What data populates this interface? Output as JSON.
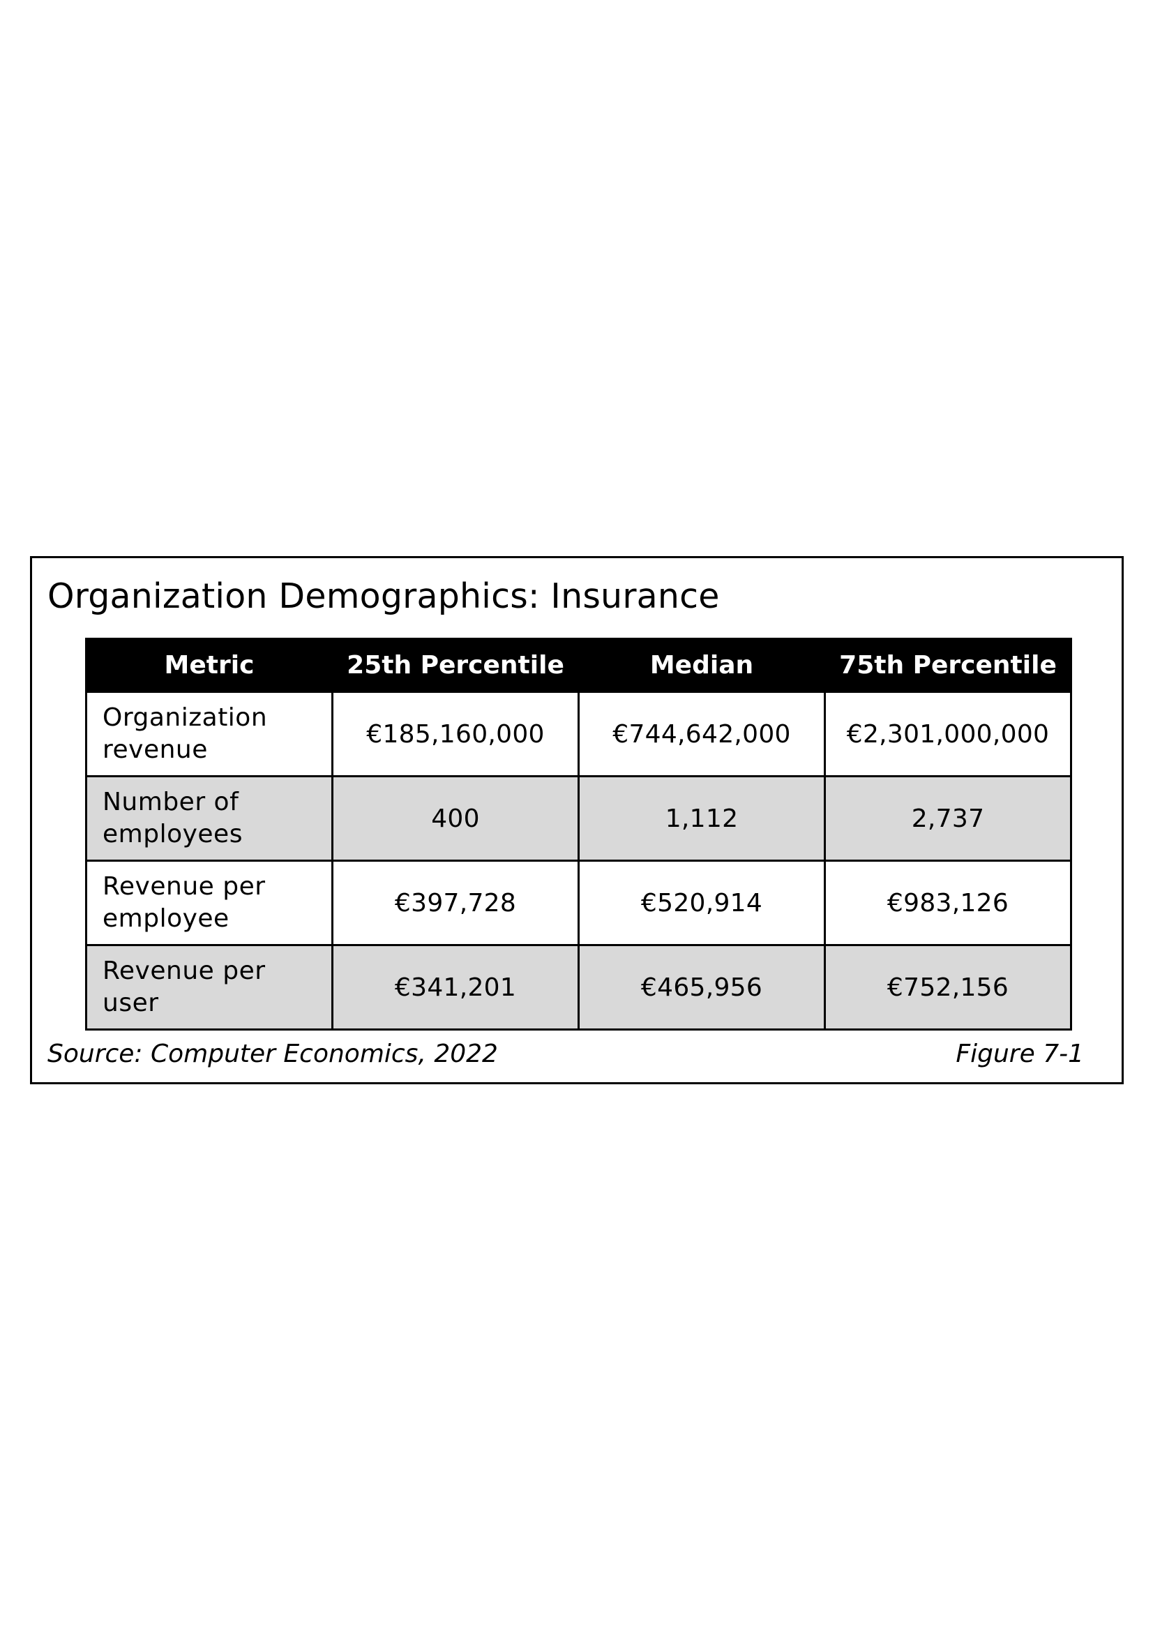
{
  "figure": {
    "title": "Organization Demographics: Insurance",
    "source": "Source: Computer Economics, 2022",
    "figure_number": "Figure 7-1"
  },
  "table": {
    "headers": [
      "Metric",
      "25th Percentile",
      "Median",
      "75th Percentile"
    ],
    "rows": [
      {
        "metric": "Organization revenue",
        "p25": "€185,160,000",
        "median": "€744,642,000",
        "p75": "€2,301,000,000"
      },
      {
        "metric": "Number of employees",
        "p25": "400",
        "median": "1,112",
        "p75": "2,737"
      },
      {
        "metric": "Revenue per employee",
        "p25": "€397,728",
        "median": "€520,914",
        "p75": "€983,126"
      },
      {
        "metric": "Revenue per user",
        "p25": "€341,201",
        "median": "€465,956",
        "p75": "€752,156"
      }
    ]
  },
  "colors": {
    "header_background": "#000000",
    "header_text": "#ffffff",
    "shaded_row": "#d9d9d9",
    "border": "#000000"
  }
}
